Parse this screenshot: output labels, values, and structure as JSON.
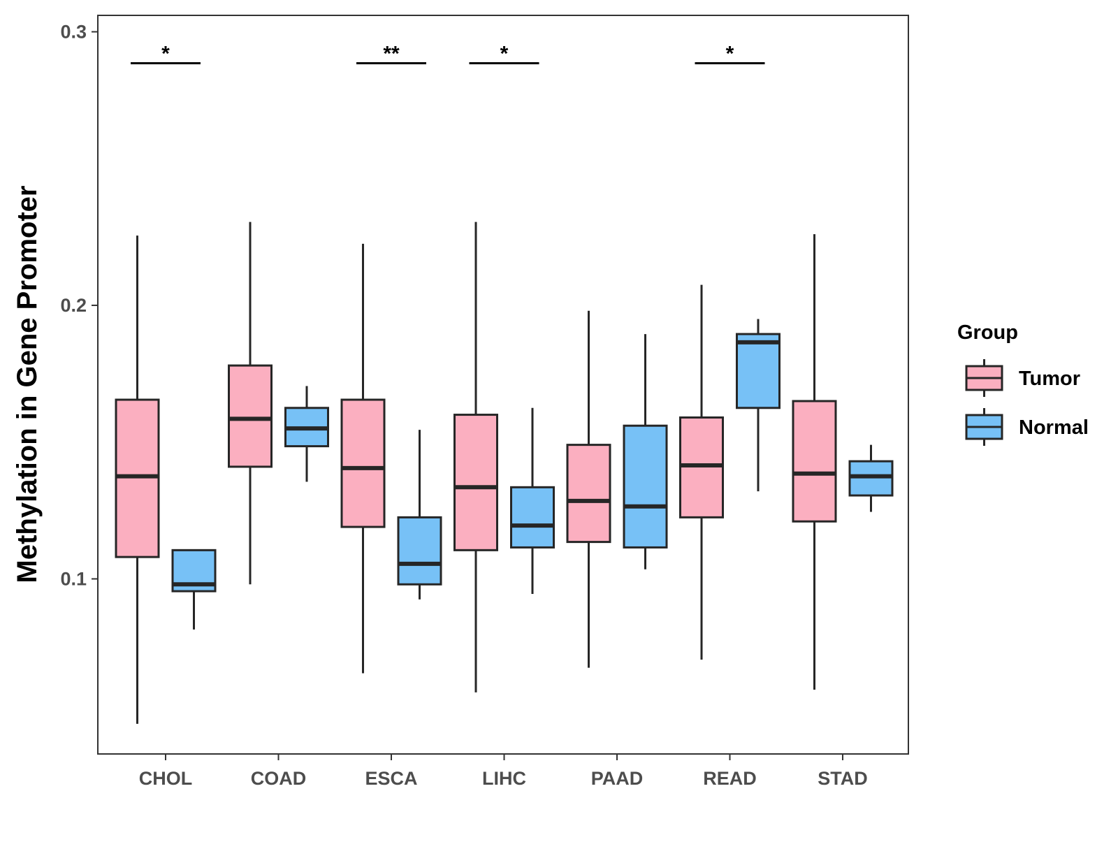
{
  "chart_data": {
    "type": "box",
    "title": "",
    "xlabel": "",
    "ylabel": "Methylation in Gene Promoter",
    "ylim": [
      0.036,
      0.306
    ],
    "yticks": [
      0.1,
      0.2,
      0.3
    ],
    "ytick_labels": [
      "0.1",
      "0.2",
      "0.3"
    ],
    "grid": false,
    "categories": [
      "CHOL",
      "COAD",
      "ESCA",
      "LIHC",
      "PAAD",
      "READ",
      "STAD"
    ],
    "legend": {
      "title": "Group",
      "position": "right"
    },
    "series": [
      {
        "name": "Tumor",
        "color": "#FBAFC0",
        "boxes": [
          {
            "min": 0.047,
            "q1": 0.108,
            "median": 0.1375,
            "q3": 0.1655,
            "max": 0.2255
          },
          {
            "min": 0.098,
            "q1": 0.141,
            "median": 0.1585,
            "q3": 0.178,
            "max": 0.2305
          },
          {
            "min": 0.0655,
            "q1": 0.119,
            "median": 0.1405,
            "q3": 0.1655,
            "max": 0.2225
          },
          {
            "min": 0.0585,
            "q1": 0.1105,
            "median": 0.1335,
            "q3": 0.16,
            "max": 0.2305
          },
          {
            "min": 0.0675,
            "q1": 0.1135,
            "median": 0.1285,
            "q3": 0.149,
            "max": 0.198
          },
          {
            "min": 0.0705,
            "q1": 0.1225,
            "median": 0.1415,
            "q3": 0.159,
            "max": 0.2075
          },
          {
            "min": 0.0595,
            "q1": 0.121,
            "median": 0.1385,
            "q3": 0.165,
            "max": 0.226
          }
        ]
      },
      {
        "name": "Normal",
        "color": "#77C1F6",
        "boxes": [
          {
            "min": 0.0815,
            "q1": 0.0955,
            "median": 0.098,
            "q3": 0.1105,
            "max": 0.1105
          },
          {
            "min": 0.1355,
            "q1": 0.1485,
            "median": 0.155,
            "q3": 0.1625,
            "max": 0.1705
          },
          {
            "min": 0.0925,
            "q1": 0.098,
            "median": 0.1055,
            "q3": 0.1225,
            "max": 0.1545
          },
          {
            "min": 0.0945,
            "q1": 0.1115,
            "median": 0.1195,
            "q3": 0.1335,
            "max": 0.1625
          },
          {
            "min": 0.1035,
            "q1": 0.1115,
            "median": 0.1265,
            "q3": 0.156,
            "max": 0.1895
          },
          {
            "min": 0.132,
            "q1": 0.1625,
            "median": 0.1865,
            "q3": 0.1895,
            "max": 0.195
          },
          {
            "min": 0.1245,
            "q1": 0.1305,
            "median": 0.1375,
            "q3": 0.143,
            "max": 0.149
          }
        ]
      }
    ],
    "significance": [
      {
        "category": "CHOL",
        "label": "*",
        "y": 0.2885
      },
      {
        "category": "ESCA",
        "label": "**",
        "y": 0.2885
      },
      {
        "category": "LIHC",
        "label": "*",
        "y": 0.2885
      },
      {
        "category": "READ",
        "label": "*",
        "y": 0.2885
      }
    ],
    "colors": {
      "stroke": "#262626",
      "panel_border": "#333333",
      "axis_text": "#4d4d4d"
    }
  }
}
